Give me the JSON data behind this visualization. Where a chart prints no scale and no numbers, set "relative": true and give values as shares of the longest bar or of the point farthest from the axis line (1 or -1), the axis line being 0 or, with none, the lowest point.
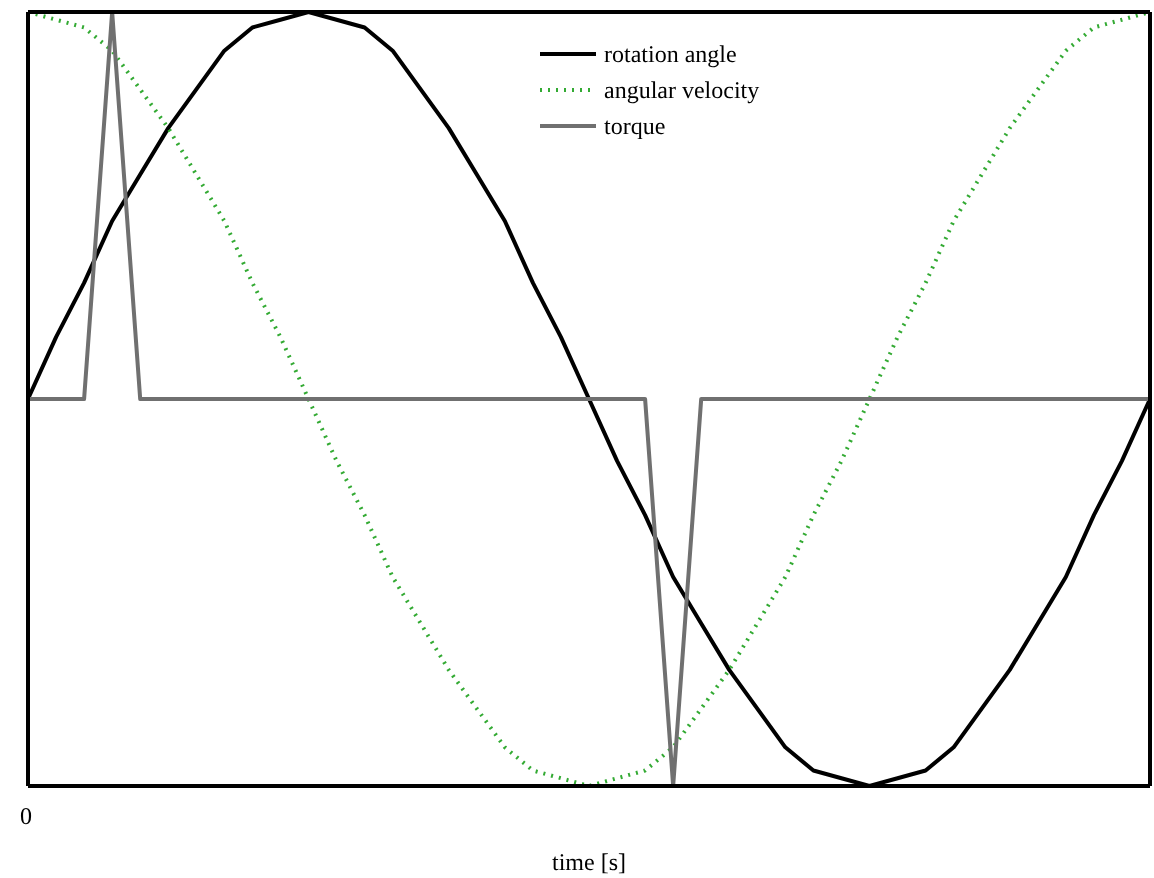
{
  "chart_data": {
    "type": "line",
    "relative": true,
    "xlabel": "time [s]",
    "annotations": [
      "0"
    ],
    "categories": [
      null,
      null,
      null,
      null,
      null,
      null,
      null,
      null,
      null,
      null,
      null,
      null,
      null,
      null,
      null,
      null,
      null,
      null,
      null,
      null,
      null,
      null,
      null,
      null,
      null,
      null,
      null,
      null,
      null,
      null,
      null,
      null,
      null,
      null,
      null,
      null,
      null,
      null,
      null,
      null,
      null
    ],
    "series": [
      {
        "name": "rotation angle",
        "color": "#000000",
        "line_style": "solid",
        "values": [
          0.5,
          0.58,
          0.65,
          0.73,
          0.79,
          0.85,
          0.9,
          0.95,
          0.98,
          0.99,
          1,
          0.99,
          0.98,
          0.95,
          0.9,
          0.85,
          0.79,
          0.73,
          0.65,
          0.58,
          0.5,
          0.42,
          0.35,
          0.27,
          0.21,
          0.15,
          0.1,
          0.05,
          0.02,
          0.01,
          0,
          0.01,
          0.02,
          0.05,
          0.1,
          0.15,
          0.21,
          0.27,
          0.35,
          0.42,
          0.5
        ]
      },
      {
        "name": "angular velocity",
        "color": "#33aa33",
        "line_style": "dotted",
        "values": [
          1,
          0.99,
          0.98,
          0.95,
          0.9,
          0.85,
          0.79,
          0.73,
          0.65,
          0.58,
          0.5,
          0.42,
          0.35,
          0.27,
          0.21,
          0.15,
          0.1,
          0.05,
          0.02,
          0.01,
          0,
          0.01,
          0.02,
          0.05,
          0.1,
          0.15,
          0.21,
          0.27,
          0.35,
          0.42,
          0.5,
          0.58,
          0.65,
          0.73,
          0.79,
          0.85,
          0.9,
          0.95,
          0.98,
          0.99,
          1
        ]
      },
      {
        "name": "torque",
        "color": "#707070",
        "line_style": "solid",
        "values": [
          0.5,
          0.5,
          0.5,
          1,
          0.5,
          0.5,
          0.5,
          0.5,
          0.5,
          0.5,
          0.5,
          0.5,
          0.5,
          0.5,
          0.5,
          0.5,
          0.5,
          0.5,
          0.5,
          0.5,
          0.5,
          0.5,
          0.5,
          0,
          0.5,
          0.5,
          0.5,
          0.5,
          0.5,
          0.5,
          0.5,
          0.5,
          0.5,
          0.5,
          0.5,
          0.5,
          0.5,
          0.5,
          0.5,
          0.5,
          0.5
        ]
      }
    ],
    "legend": "top right",
    "grid": false,
    "marker": "none"
  }
}
